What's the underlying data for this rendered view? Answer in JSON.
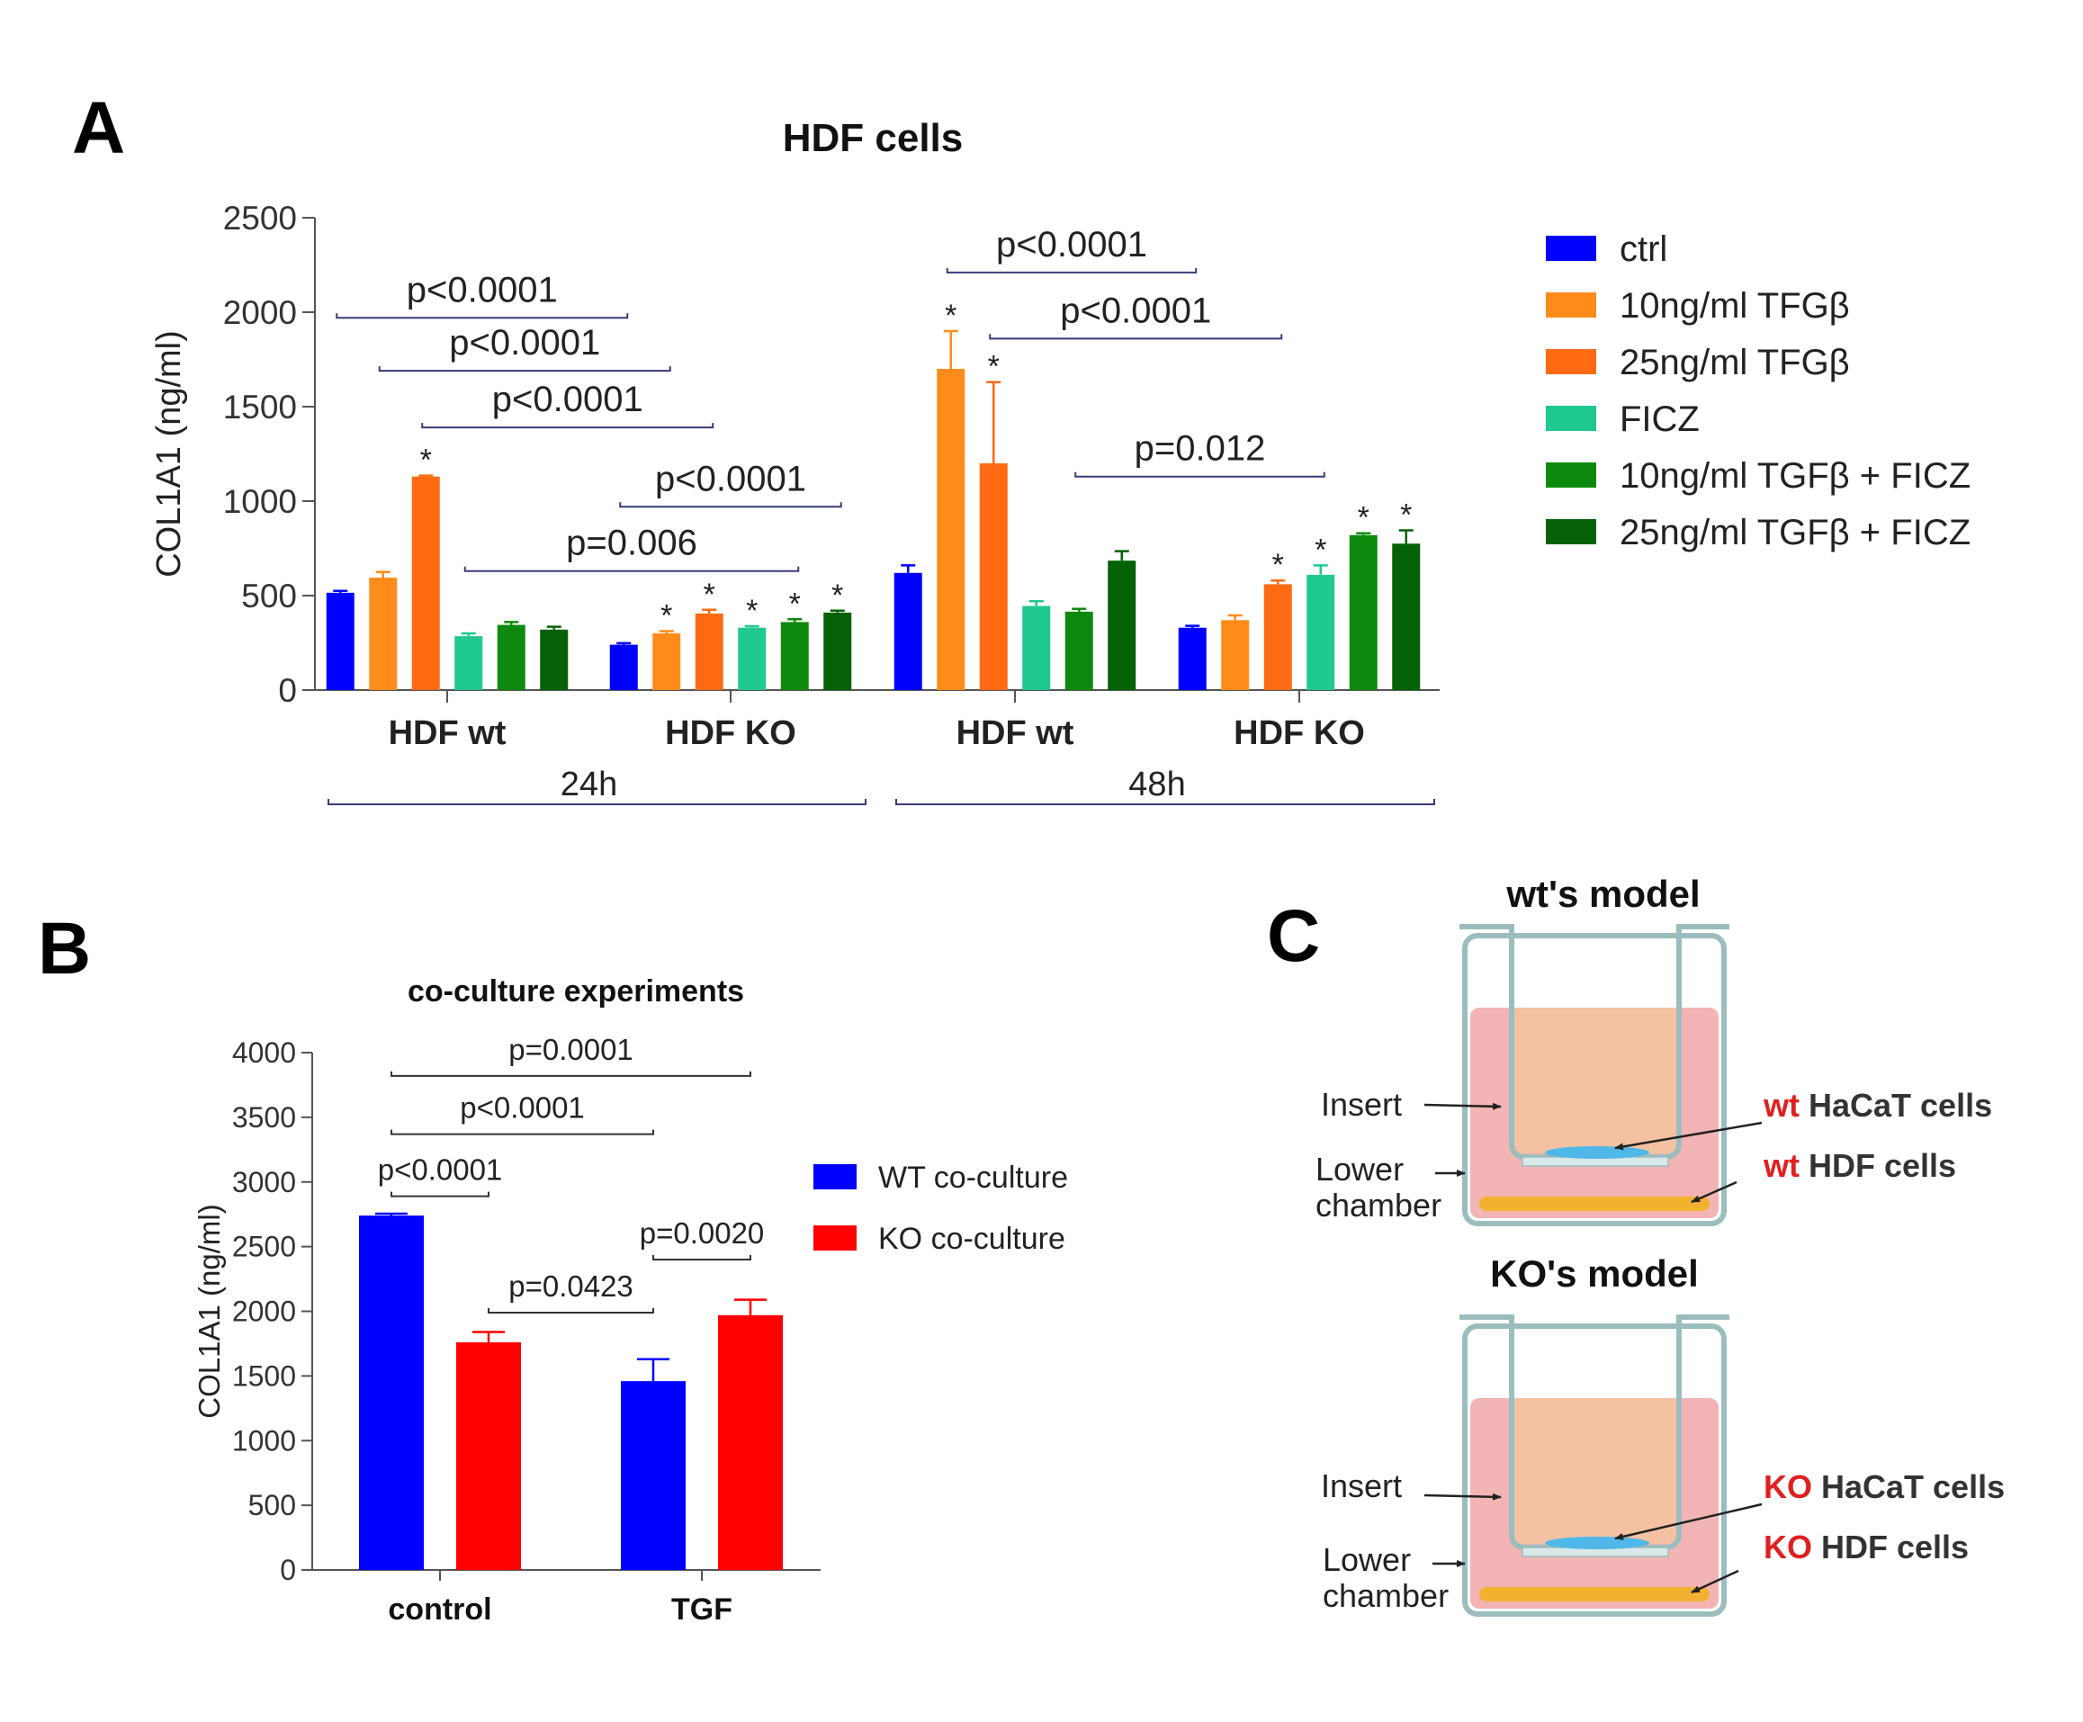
{
  "panel_labels": {
    "a": "A",
    "b": "B",
    "c": "C"
  },
  "colors": {
    "ctrl": "#0000ff",
    "tgf10": "#ff8c1a",
    "tgf25": "#ff6a13",
    "ficz": "#1fc98e",
    "tgf10_ficz": "#0d8a0d",
    "tgf25_ficz": "#056105",
    "wt_co": "#0000ff",
    "ko_co": "#ff0000",
    "bracket_a": "#3a3a7a",
    "axis": "#555555",
    "red_text": "#e02020"
  },
  "chart_data": [
    {
      "type": "bar",
      "title": "HDF cells",
      "ylabel": "COL1A1 (ng/ml)",
      "xlabel": "",
      "ylim": [
        0,
        2500
      ],
      "yticks": [
        0,
        500,
        1000,
        1500,
        2000,
        2500
      ],
      "groups": [
        "HDF wt",
        "HDF KO",
        "HDF wt",
        "HDF KO"
      ],
      "time_groups": [
        {
          "label": "24h",
          "span": [
            0,
            1
          ]
        },
        {
          "label": "48h",
          "span": [
            2,
            3
          ]
        }
      ],
      "legend": {
        "position": "right"
      },
      "series": [
        {
          "name": "ctrl",
          "color_key": "ctrl",
          "values": [
            515,
            240,
            620,
            330
          ],
          "errors": [
            10,
            8,
            40,
            10
          ],
          "stars": [
            false,
            false,
            false,
            false
          ]
        },
        {
          "name": "10ng/ml TFGβ",
          "color_key": "tgf10",
          "values": [
            595,
            300,
            1700,
            370
          ],
          "errors": [
            30,
            12,
            200,
            25
          ],
          "stars": [
            false,
            true,
            true,
            false
          ]
        },
        {
          "name": "25ng/ml TFGβ",
          "color_key": "tgf25",
          "values": [
            1130,
            405,
            1200,
            560
          ],
          "errors": [
            5,
            20,
            430,
            20
          ],
          "stars": [
            true,
            true,
            true,
            true
          ]
        },
        {
          "name": "FICZ",
          "color_key": "ficz",
          "values": [
            285,
            330,
            445,
            610
          ],
          "errors": [
            15,
            8,
            25,
            50
          ],
          "stars": [
            false,
            true,
            false,
            true
          ]
        },
        {
          "name": "10ng/ml TGFβ + FICZ",
          "color_key": "tgf10_ficz",
          "values": [
            345,
            360,
            415,
            820
          ],
          "errors": [
            15,
            15,
            15,
            10
          ],
          "stars": [
            false,
            true,
            false,
            true
          ]
        },
        {
          "name": "25ng/ml TGFβ + FICZ",
          "color_key": "tgf25_ficz",
          "values": [
            320,
            410,
            685,
            775
          ],
          "errors": [
            15,
            10,
            50,
            70
          ],
          "stars": [
            false,
            true,
            false,
            true
          ]
        }
      ],
      "comparisons": [
        {
          "label": "p<0.0001",
          "from": [
            0,
            0
          ],
          "to": [
            1,
            0
          ],
          "level": 1970
        },
        {
          "label": "p<0.0001",
          "from": [
            0,
            1
          ],
          "to": [
            1,
            1
          ],
          "level": 1690
        },
        {
          "label": "p<0.0001",
          "from": [
            0,
            2
          ],
          "to": [
            1,
            2
          ],
          "level": 1390
        },
        {
          "label": "p<0.0001",
          "from": [
            1,
            0
          ],
          "to": [
            1,
            5
          ],
          "level": 970
        },
        {
          "label": "p=0.006",
          "from": [
            0,
            3
          ],
          "to": [
            1,
            4
          ],
          "level": 630
        },
        {
          "label": "p<0.0001",
          "from": [
            2,
            1
          ],
          "to": [
            3,
            0
          ],
          "level": 2210
        },
        {
          "label": "p<0.0001",
          "from": [
            2,
            2
          ],
          "to": [
            3,
            2
          ],
          "level": 1860
        },
        {
          "label": "p=0.012",
          "from": [
            2,
            4
          ],
          "to": [
            3,
            3
          ],
          "level": 1130
        }
      ]
    },
    {
      "type": "bar",
      "title": "co-culture experiments",
      "ylabel": "COL1A1 (ng/ml)",
      "xlabel": "",
      "ylim": [
        0,
        4000
      ],
      "yticks": [
        0,
        500,
        1000,
        1500,
        2000,
        2500,
        3000,
        3500,
        4000
      ],
      "categories": [
        "control",
        "TGF"
      ],
      "legend": {
        "position": "right"
      },
      "series": [
        {
          "name": "WT co-culture",
          "color_key": "wt_co",
          "values": [
            2740,
            1460
          ],
          "errors": [
            15,
            170
          ]
        },
        {
          "name": "KO co-culture",
          "color_key": "ko_co",
          "values": [
            1760,
            1970
          ],
          "errors": [
            80,
            120
          ]
        }
      ],
      "comparisons": [
        {
          "label": "p=0.0001",
          "from": [
            0,
            0
          ],
          "to": [
            1,
            1
          ],
          "level": 3820
        },
        {
          "label": "p<0.0001",
          "from": [
            0,
            0
          ],
          "to": [
            1,
            0
          ],
          "level": 3370
        },
        {
          "label": "p<0.0001",
          "from": [
            0,
            0
          ],
          "to": [
            0,
            1
          ],
          "level": 2890
        },
        {
          "label": "p=0.0020",
          "from": [
            1,
            0
          ],
          "to": [
            1,
            1
          ],
          "level": 2400
        },
        {
          "label": "p=0.0423",
          "from": [
            0,
            1
          ],
          "to": [
            1,
            0
          ],
          "level": 1990
        }
      ]
    }
  ],
  "diagram": {
    "models": [
      {
        "title": "wt's model",
        "insert_label": "Insert",
        "lower_label_1": "Lower",
        "lower_label_2": "chamber",
        "hacat_prefix": "wt",
        "hacat_suffix": " HaCaT cells",
        "hdf_prefix": "wt",
        "hdf_suffix": " HDF cells"
      },
      {
        "title": "KO's model",
        "insert_label": "Insert",
        "lower_label_1": "Lower",
        "lower_label_2": "chamber",
        "hacat_prefix": "KO",
        "hacat_suffix": " HaCaT cells",
        "hdf_prefix": "KO",
        "hdf_suffix": " HDF cells"
      }
    ]
  }
}
